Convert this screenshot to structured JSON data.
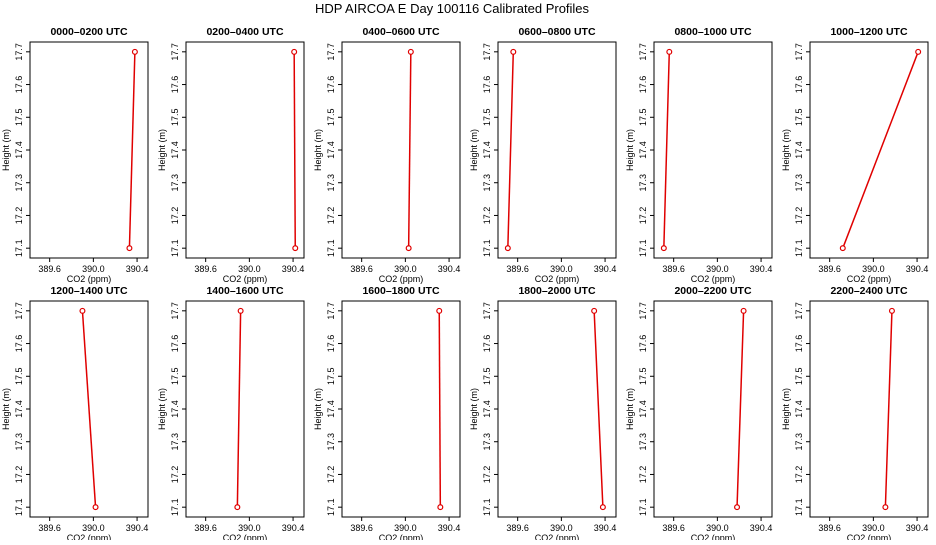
{
  "title": "HDP AIRCOA E  Day 100116  Calibrated Profiles",
  "colors": {
    "line": "#e00000",
    "point": "#e00000",
    "frame": "#000000"
  },
  "chart_data": {
    "type": "line",
    "layout_grid": "2 rows x 6 columns",
    "xlabel": "CO2 (ppm)",
    "ylabel": "Height (m)",
    "x_ticks": [
      "389.6",
      "390.0",
      "390.4"
    ],
    "y_ticks": [
      "17.1",
      "17.2",
      "17.3",
      "17.4",
      "17.5",
      "17.6",
      "17.7"
    ],
    "ylim": [
      17.07,
      17.73
    ],
    "grid": false,
    "legend": "none",
    "panels": [
      {
        "title": "0000–0200 UTC",
        "xlim": [
          389.42,
          390.5
        ],
        "points": [
          {
            "x": 390.33,
            "y": 17.1
          },
          {
            "x": 390.38,
            "y": 17.7
          }
        ]
      },
      {
        "title": "0200–0400 UTC",
        "xlim": [
          389.42,
          390.5
        ],
        "points": [
          {
            "x": 390.42,
            "y": 17.1
          },
          {
            "x": 390.41,
            "y": 17.7
          }
        ]
      },
      {
        "title": "0400–0600 UTC",
        "xlim": [
          389.42,
          390.5
        ],
        "points": [
          {
            "x": 390.03,
            "y": 17.1
          },
          {
            "x": 390.05,
            "y": 17.7
          }
        ]
      },
      {
        "title": "0600–0800 UTC",
        "xlim": [
          389.42,
          390.5
        ],
        "points": [
          {
            "x": 389.51,
            "y": 17.1
          },
          {
            "x": 389.56,
            "y": 17.7
          }
        ]
      },
      {
        "title": "0800–1000 UTC",
        "xlim": [
          389.42,
          390.5
        ],
        "points": [
          {
            "x": 389.51,
            "y": 17.1
          },
          {
            "x": 389.56,
            "y": 17.7
          }
        ]
      },
      {
        "title": "1000–1200 UTC",
        "xlim": [
          389.42,
          390.5
        ],
        "points": [
          {
            "x": 389.72,
            "y": 17.1
          },
          {
            "x": 390.41,
            "y": 17.7
          }
        ]
      },
      {
        "title": "1200–1400 UTC",
        "xlim": [
          389.42,
          390.5
        ],
        "points": [
          {
            "x": 389.9,
            "y": 17.7
          },
          {
            "x": 390.02,
            "y": 17.1
          }
        ]
      },
      {
        "title": "1400–1600 UTC",
        "xlim": [
          389.42,
          390.5
        ],
        "points": [
          {
            "x": 389.89,
            "y": 17.1
          },
          {
            "x": 389.92,
            "y": 17.7
          }
        ]
      },
      {
        "title": "1600–1800 UTC",
        "xlim": [
          389.42,
          390.5
        ],
        "points": [
          {
            "x": 390.31,
            "y": 17.7
          },
          {
            "x": 390.32,
            "y": 17.1
          }
        ]
      },
      {
        "title": "1800–2000 UTC",
        "xlim": [
          389.42,
          390.5
        ],
        "points": [
          {
            "x": 390.3,
            "y": 17.7
          },
          {
            "x": 390.38,
            "y": 17.1
          }
        ]
      },
      {
        "title": "2000–2200 UTC",
        "xlim": [
          389.42,
          390.5
        ],
        "points": [
          {
            "x": 390.18,
            "y": 17.1
          },
          {
            "x": 390.24,
            "y": 17.7
          }
        ]
      },
      {
        "title": "2200–2400 UTC",
        "xlim": [
          389.42,
          390.5
        ],
        "points": [
          {
            "x": 390.11,
            "y": 17.1
          },
          {
            "x": 390.17,
            "y": 17.7
          }
        ]
      }
    ]
  }
}
